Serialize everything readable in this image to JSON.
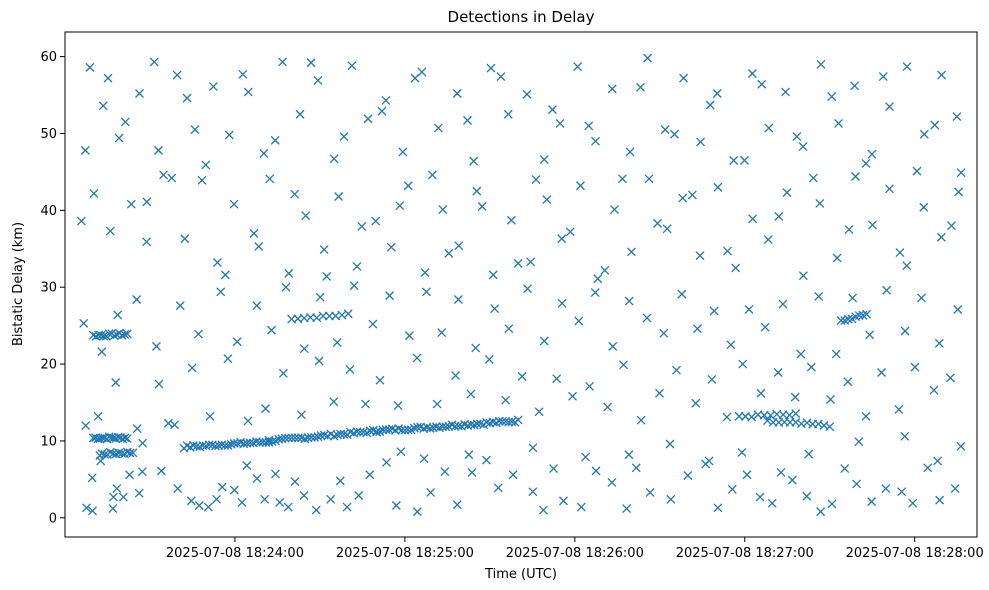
{
  "chart_data": {
    "type": "scatter",
    "title": "Detections in Delay",
    "xlabel": "Time (UTC)",
    "ylabel": "Bistatic Delay (km)",
    "x_unit": "seconds after 2025-07-08 18:23:00 UTC",
    "xlim": [
      0,
      322
    ],
    "ylim": [
      -2.5,
      63.2
    ],
    "x_ticks": [
      {
        "value": 60,
        "label": "2025-07-08 18:24:00"
      },
      {
        "value": 120,
        "label": "2025-07-08 18:25:00"
      },
      {
        "value": 180,
        "label": "2025-07-08 18:26:00"
      },
      {
        "value": 240,
        "label": "2025-07-08 18:27:00"
      },
      {
        "value": 300,
        "label": "2025-07-08 18:28:00"
      }
    ],
    "y_ticks": [
      {
        "value": 0,
        "label": "0"
      },
      {
        "value": 10,
        "label": "10"
      },
      {
        "value": 20,
        "label": "20"
      },
      {
        "value": 30,
        "label": "30"
      },
      {
        "value": 40,
        "label": "40"
      },
      {
        "value": 50,
        "label": "50"
      },
      {
        "value": 60,
        "label": "60"
      }
    ],
    "marker": "x",
    "color": "#1f77b4",
    "grid": false,
    "track_segments": [
      {
        "x_start": 10,
        "x_end": 22,
        "y_start": 10.4,
        "y_end": 10.4,
        "count": 16
      },
      {
        "x_start": 10,
        "x_end": 22,
        "y_start": 23.7,
        "y_end": 23.9,
        "count": 14
      },
      {
        "x_start": 13,
        "x_end": 24,
        "y_start": 8.3,
        "y_end": 8.5,
        "count": 12
      },
      {
        "x_start": 42,
        "x_end": 72,
        "y_start": 9.2,
        "y_end": 9.9,
        "count": 28
      },
      {
        "x_start": 72,
        "x_end": 110,
        "y_start": 10.0,
        "y_end": 11.3,
        "count": 34
      },
      {
        "x_start": 110,
        "x_end": 160,
        "y_start": 11.3,
        "y_end": 12.6,
        "count": 46
      },
      {
        "x_start": 80,
        "x_end": 100,
        "y_start": 26.0,
        "y_end": 26.4,
        "count": 10
      },
      {
        "x_start": 238,
        "x_end": 258,
        "y_start": 13.2,
        "y_end": 13.4,
        "count": 10
      },
      {
        "x_start": 248,
        "x_end": 270,
        "y_start": 12.5,
        "y_end": 12.0,
        "count": 12
      },
      {
        "x_start": 274,
        "x_end": 283,
        "y_start": 25.5,
        "y_end": 26.5,
        "count": 8
      }
    ],
    "scattered_points": [
      [
        7.6,
        1.3
      ],
      [
        9.7,
        0.9
      ],
      [
        9.6,
        5.2
      ],
      [
        12.6,
        7.4
      ],
      [
        17.1,
        2.7
      ],
      [
        18.3,
        3.8
      ],
      [
        16.9,
        1.2
      ],
      [
        20.6,
        2.7
      ],
      [
        22.8,
        5.6
      ],
      [
        26.2,
        3.2
      ],
      [
        27.3,
        6.0
      ],
      [
        34.0,
        6.1
      ],
      [
        39.8,
        3.8
      ],
      [
        44.6,
        2.2
      ],
      [
        47.4,
        1.6
      ],
      [
        50.6,
        1.4
      ],
      [
        53.5,
        2.4
      ],
      [
        55.5,
        4.0
      ],
      [
        59.8,
        3.6
      ],
      [
        62.5,
        2.0
      ],
      [
        64.2,
        6.8
      ],
      [
        67.8,
        5.1
      ],
      [
        70.5,
        2.4
      ],
      [
        74.3,
        5.7
      ],
      [
        75.8,
        2.0
      ],
      [
        78.8,
        1.4
      ],
      [
        81.2,
        4.7
      ],
      [
        84.4,
        2.9
      ],
      [
        88.7,
        1.0
      ],
      [
        93.8,
        2.4
      ],
      [
        97.2,
        4.8
      ],
      [
        99.6,
        1.4
      ],
      [
        103.7,
        2.9
      ],
      [
        107.6,
        5.6
      ],
      [
        113.5,
        7.2
      ],
      [
        117.0,
        1.6
      ],
      [
        124.4,
        0.8
      ],
      [
        129.1,
        3.3
      ],
      [
        134.1,
        6.0
      ],
      [
        138.5,
        1.7
      ],
      [
        143.7,
        5.9
      ],
      [
        148.8,
        7.5
      ],
      [
        153.0,
        3.9
      ],
      [
        158.2,
        5.6
      ],
      [
        165.2,
        3.4
      ],
      [
        168.9,
        1.0
      ],
      [
        172.5,
        6.4
      ],
      [
        176.0,
        2.2
      ],
      [
        182.3,
        1.4
      ],
      [
        187.5,
        6.1
      ],
      [
        193.1,
        4.6
      ],
      [
        198.3,
        1.2
      ],
      [
        201.7,
        6.5
      ],
      [
        206.6,
        3.3
      ],
      [
        213.9,
        2.4
      ],
      [
        219.9,
        5.5
      ],
      [
        226.2,
        7.0
      ],
      [
        230.5,
        1.3
      ],
      [
        235.6,
        3.7
      ],
      [
        240.8,
        5.6
      ],
      [
        245.4,
        2.7
      ],
      [
        249.7,
        1.9
      ],
      [
        252.8,
        5.9
      ],
      [
        256.8,
        4.9
      ],
      [
        261.9,
        2.8
      ],
      [
        266.8,
        0.8
      ],
      [
        270.8,
        1.8
      ],
      [
        275.3,
        6.4
      ],
      [
        279.5,
        4.4
      ],
      [
        284.8,
        2.1
      ],
      [
        289.8,
        3.8
      ],
      [
        295.4,
        3.4
      ],
      [
        299.3,
        1.9
      ],
      [
        304.6,
        6.5
      ],
      [
        308.8,
        2.3
      ],
      [
        314.3,
        3.8
      ],
      [
        7.3,
        12.0
      ],
      [
        11.7,
        13.2
      ],
      [
        17.9,
        17.6
      ],
      [
        25.5,
        11.6
      ],
      [
        33.2,
        17.4
      ],
      [
        38.7,
        12.1
      ],
      [
        44.9,
        19.5
      ],
      [
        51.2,
        13.2
      ],
      [
        57.5,
        20.7
      ],
      [
        64.6,
        12.6
      ],
      [
        70.8,
        14.2
      ],
      [
        77.1,
        18.8
      ],
      [
        83.5,
        13.4
      ],
      [
        89.7,
        20.4
      ],
      [
        94.9,
        15.1
      ],
      [
        100.6,
        19.3
      ],
      [
        106.1,
        14.8
      ],
      [
        111.2,
        17.9
      ],
      [
        117.6,
        14.6
      ],
      [
        124.3,
        20.8
      ],
      [
        131.4,
        14.8
      ],
      [
        137.9,
        18.5
      ],
      [
        143.3,
        16.1
      ],
      [
        149.8,
        20.6
      ],
      [
        155.6,
        15.3
      ],
      [
        161.4,
        18.4
      ],
      [
        167.4,
        13.8
      ],
      [
        173.6,
        18.1
      ],
      [
        179.2,
        15.8
      ],
      [
        185.2,
        17.1
      ],
      [
        191.6,
        14.4
      ],
      [
        197.2,
        19.9
      ],
      [
        203.4,
        12.7
      ],
      [
        209.9,
        16.2
      ],
      [
        215.9,
        19.2
      ],
      [
        222.7,
        14.9
      ],
      [
        228.4,
        18.0
      ],
      [
        233.7,
        13.1
      ],
      [
        239.3,
        20.0
      ],
      [
        245.7,
        16.2
      ],
      [
        251.8,
        18.9
      ],
      [
        257.8,
        15.7
      ],
      [
        263.5,
        19.6
      ],
      [
        270.3,
        15.4
      ],
      [
        276.4,
        17.7
      ],
      [
        282.8,
        13.2
      ],
      [
        288.3,
        18.9
      ],
      [
        294.4,
        14.1
      ],
      [
        300.1,
        19.6
      ],
      [
        306.8,
        16.6
      ],
      [
        312.6,
        18.2
      ],
      [
        6.6,
        25.3
      ],
      [
        13.0,
        21.6
      ],
      [
        18.6,
        26.4
      ],
      [
        25.3,
        28.4
      ],
      [
        32.3,
        22.3
      ],
      [
        40.7,
        27.6
      ],
      [
        47.1,
        23.9
      ],
      [
        55.0,
        29.4
      ],
      [
        60.8,
        22.9
      ],
      [
        67.7,
        27.6
      ],
      [
        72.9,
        24.4
      ],
      [
        78.0,
        30.0
      ],
      [
        84.5,
        22.0
      ],
      [
        90.1,
        28.7
      ],
      [
        96.1,
        22.8
      ],
      [
        102.1,
        30.2
      ],
      [
        108.7,
        25.2
      ],
      [
        114.6,
        28.9
      ],
      [
        121.6,
        23.7
      ],
      [
        127.6,
        29.4
      ],
      [
        133.0,
        24.1
      ],
      [
        138.9,
        28.4
      ],
      [
        145.0,
        22.1
      ],
      [
        151.7,
        27.2
      ],
      [
        156.7,
        24.6
      ],
      [
        163.3,
        29.8
      ],
      [
        169.2,
        23.0
      ],
      [
        175.5,
        27.9
      ],
      [
        181.4,
        25.6
      ],
      [
        187.2,
        29.3
      ],
      [
        193.4,
        22.3
      ],
      [
        199.2,
        28.2
      ],
      [
        205.5,
        26.0
      ],
      [
        211.4,
        24.0
      ],
      [
        217.8,
        29.1
      ],
      [
        223.3,
        24.6
      ],
      [
        229.2,
        26.9
      ],
      [
        235.1,
        22.5
      ],
      [
        241.5,
        27.1
      ],
      [
        247.2,
        24.8
      ],
      [
        253.5,
        27.8
      ],
      [
        259.8,
        21.3
      ],
      [
        266.1,
        28.8
      ],
      [
        272.3,
        21.3
      ],
      [
        278.1,
        28.6
      ],
      [
        284.1,
        23.8
      ],
      [
        290.1,
        29.6
      ],
      [
        296.6,
        24.3
      ],
      [
        302.4,
        28.6
      ],
      [
        308.7,
        22.7
      ],
      [
        315.2,
        27.1
      ],
      [
        5.8,
        38.6
      ],
      [
        10.2,
        42.2
      ],
      [
        16.0,
        37.3
      ],
      [
        23.4,
        40.8
      ],
      [
        28.8,
        35.9
      ],
      [
        34.8,
        44.6
      ],
      [
        42.3,
        36.3
      ],
      [
        48.4,
        43.9
      ],
      [
        53.8,
        33.2
      ],
      [
        59.7,
        40.8
      ],
      [
        66.7,
        37.0
      ],
      [
        72.3,
        44.1
      ],
      [
        79.0,
        31.8
      ],
      [
        85.0,
        39.3
      ],
      [
        91.5,
        34.9
      ],
      [
        96.6,
        41.8
      ],
      [
        103.1,
        32.7
      ],
      [
        109.7,
        38.6
      ],
      [
        115.2,
        35.2
      ],
      [
        121.2,
        43.2
      ],
      [
        127.1,
        31.9
      ],
      [
        133.4,
        40.1
      ],
      [
        139.0,
        35.4
      ],
      [
        145.4,
        42.5
      ],
      [
        151.2,
        31.6
      ],
      [
        157.6,
        38.7
      ],
      [
        164.4,
        33.3
      ],
      [
        170.1,
        41.4
      ],
      [
        175.4,
        36.3
      ],
      [
        182.0,
        43.2
      ],
      [
        188.1,
        31.1
      ],
      [
        194.0,
        40.1
      ],
      [
        200.0,
        34.6
      ],
      [
        206.2,
        44.1
      ],
      [
        212.6,
        37.6
      ],
      [
        218.1,
        41.6
      ],
      [
        224.2,
        34.1
      ],
      [
        230.5,
        43.0
      ],
      [
        236.8,
        32.5
      ],
      [
        242.8,
        38.9
      ],
      [
        248.3,
        36.2
      ],
      [
        254.9,
        42.3
      ],
      [
        260.7,
        31.5
      ],
      [
        266.5,
        40.9
      ],
      [
        272.6,
        33.8
      ],
      [
        279.1,
        44.4
      ],
      [
        285.1,
        38.1
      ],
      [
        291.1,
        42.8
      ],
      [
        297.2,
        32.8
      ],
      [
        303.2,
        40.4
      ],
      [
        309.4,
        36.5
      ],
      [
        315.5,
        42.4
      ],
      [
        7.2,
        47.8
      ],
      [
        13.5,
        53.6
      ],
      [
        19.1,
        49.4
      ],
      [
        26.3,
        55.2
      ],
      [
        33.0,
        47.8
      ],
      [
        39.6,
        57.6
      ],
      [
        45.9,
        50.5
      ],
      [
        52.4,
        56.1
      ],
      [
        58.0,
        49.8
      ],
      [
        64.7,
        55.4
      ],
      [
        70.2,
        47.4
      ],
      [
        76.8,
        59.3
      ],
      [
        83.0,
        52.5
      ],
      [
        89.3,
        56.9
      ],
      [
        95.0,
        46.7
      ],
      [
        101.3,
        58.8
      ],
      [
        107.0,
        51.9
      ],
      [
        113.3,
        54.3
      ],
      [
        119.3,
        47.6
      ],
      [
        126.0,
        58.0
      ],
      [
        131.8,
        50.7
      ],
      [
        138.5,
        55.2
      ],
      [
        144.3,
        46.4
      ],
      [
        150.4,
        58.5
      ],
      [
        156.5,
        52.5
      ],
      [
        163.1,
        55.1
      ],
      [
        169.2,
        46.6
      ],
      [
        174.8,
        51.3
      ],
      [
        181.0,
        58.7
      ],
      [
        187.3,
        49.0
      ],
      [
        193.2,
        55.8
      ],
      [
        199.5,
        47.6
      ],
      [
        205.7,
        59.8
      ],
      [
        211.9,
        50.5
      ],
      [
        218.4,
        57.2
      ],
      [
        224.4,
        48.9
      ],
      [
        230.3,
        55.2
      ],
      [
        236.1,
        46.5
      ],
      [
        242.7,
        57.8
      ],
      [
        248.5,
        50.7
      ],
      [
        254.4,
        55.4
      ],
      [
        260.6,
        48.3
      ],
      [
        266.9,
        59.0
      ],
      [
        273.1,
        51.3
      ],
      [
        278.8,
        56.2
      ],
      [
        284.9,
        47.3
      ],
      [
        291.1,
        53.5
      ],
      [
        297.3,
        58.7
      ],
      [
        303.4,
        49.9
      ],
      [
        309.5,
        57.6
      ],
      [
        314.9,
        52.2
      ],
      [
        8.8,
        58.6
      ],
      [
        15.2,
        57.2
      ],
      [
        21.3,
        51.5
      ],
      [
        28.9,
        41.1
      ],
      [
        31.5,
        59.3
      ],
      [
        37.7,
        44.2
      ],
      [
        43.1,
        54.6
      ],
      [
        49.7,
        45.9
      ],
      [
        56.6,
        31.6
      ],
      [
        62.8,
        57.7
      ],
      [
        68.4,
        35.3
      ],
      [
        74.2,
        49.1
      ],
      [
        81.1,
        42.1
      ],
      [
        86.9,
        59.2
      ],
      [
        92.4,
        31.4
      ],
      [
        98.5,
        49.6
      ],
      [
        104.8,
        37.9
      ],
      [
        111.9,
        52.9
      ],
      [
        118.2,
        40.6
      ],
      [
        123.6,
        57.2
      ],
      [
        129.7,
        44.6
      ],
      [
        135.5,
        34.4
      ],
      [
        142.1,
        51.7
      ],
      [
        147.3,
        40.5
      ],
      [
        153.9,
        57.4
      ],
      [
        160.0,
        33.1
      ],
      [
        166.3,
        44.0
      ],
      [
        172.1,
        53.1
      ],
      [
        178.4,
        37.2
      ],
      [
        184.9,
        51.0
      ],
      [
        190.6,
        32.2
      ],
      [
        196.8,
        44.1
      ],
      [
        203.2,
        56.0
      ],
      [
        209.2,
        38.3
      ],
      [
        215.2,
        49.9
      ],
      [
        221.5,
        42.0
      ],
      [
        227.8,
        53.7
      ],
      [
        233.9,
        34.7
      ],
      [
        239.9,
        46.5
      ],
      [
        246.0,
        56.4
      ],
      [
        252.0,
        39.2
      ],
      [
        258.4,
        49.6
      ],
      [
        264.2,
        44.2
      ],
      [
        270.7,
        54.8
      ],
      [
        276.8,
        37.5
      ],
      [
        282.8,
        46.1
      ],
      [
        288.9,
        57.4
      ],
      [
        294.8,
        34.5
      ],
      [
        300.8,
        45.1
      ],
      [
        307.1,
        51.1
      ],
      [
        313.0,
        38.0
      ],
      [
        316.4,
        44.9
      ],
      [
        12.3,
        8.1
      ],
      [
        27.4,
        9.7
      ],
      [
        36.5,
        12.3
      ],
      [
        118.6,
        8.6
      ],
      [
        126.8,
        7.7
      ],
      [
        142.6,
        8.2
      ],
      [
        165.2,
        9.1
      ],
      [
        183.8,
        7.9
      ],
      [
        199.1,
        8.2
      ],
      [
        213.6,
        9.6
      ],
      [
        227.4,
        7.4
      ],
      [
        239.0,
        8.5
      ],
      [
        262.6,
        8.3
      ],
      [
        280.3,
        9.9
      ],
      [
        296.5,
        10.6
      ],
      [
        308.1,
        7.4
      ],
      [
        316.3,
        9.3
      ]
    ]
  }
}
